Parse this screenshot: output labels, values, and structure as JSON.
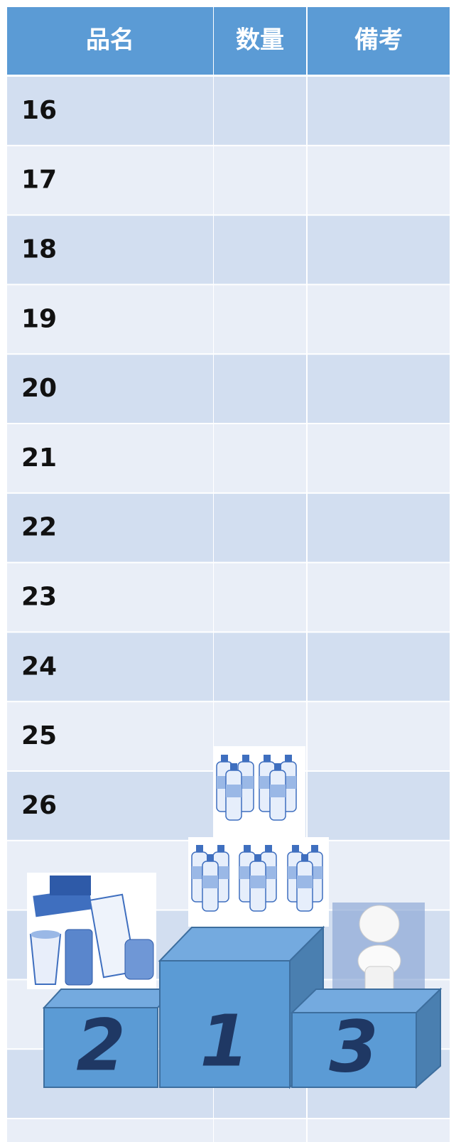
{
  "table": {
    "headers": [
      "品名",
      "数量",
      "備考"
    ],
    "rows": [
      [
        "16"
      ],
      [
        "17"
      ],
      [
        "18"
      ],
      [
        "19"
      ],
      [
        "20"
      ],
      [
        "21"
      ],
      [
        "22"
      ],
      [
        "23"
      ],
      [
        "24"
      ],
      [
        "25"
      ],
      [
        "26"
      ]
    ]
  },
  "podium": {
    "ranks": [
      "2",
      "1",
      "3"
    ]
  }
}
